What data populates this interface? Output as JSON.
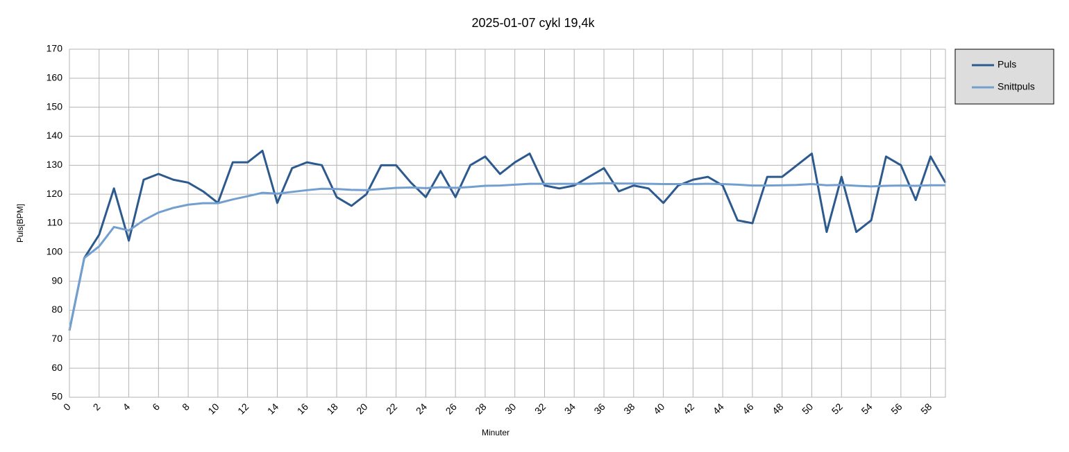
{
  "chart_data": {
    "type": "line",
    "title": "2025-01-07 cykl 19,4k",
    "x_label": "Minuter",
    "y_label": "Puls[BPM]",
    "x": [
      0,
      1,
      2,
      3,
      4,
      5,
      6,
      7,
      8,
      9,
      10,
      11,
      12,
      13,
      14,
      15,
      16,
      17,
      18,
      19,
      20,
      21,
      22,
      23,
      24,
      25,
      26,
      27,
      28,
      29,
      30,
      31,
      32,
      33,
      34,
      35,
      36,
      37,
      38,
      39,
      40,
      41,
      42,
      43,
      44,
      45,
      46,
      47,
      48,
      49,
      50,
      51,
      52,
      53,
      54,
      55,
      56,
      57,
      58,
      59
    ],
    "series": [
      {
        "name": "Puls",
        "color": "#2c5a8e",
        "values": [
          73,
          98,
          106,
          122,
          104,
          125,
          127,
          125,
          124,
          121,
          117,
          131,
          131,
          135,
          117,
          129,
          131,
          130,
          119,
          116,
          120,
          130,
          130,
          124,
          119,
          128,
          119,
          130,
          133,
          127,
          131,
          134,
          123,
          122,
          123,
          126,
          129,
          121,
          123,
          122,
          117,
          123,
          125,
          126,
          123,
          111,
          110,
          126,
          126,
          130,
          134,
          107,
          126,
          107,
          111,
          133,
          130,
          118,
          133,
          124
        ]
      },
      {
        "name": "Snittpuls",
        "color": "#729fcf",
        "values": [
          73,
          98,
          102,
          108.7,
          107.5,
          111,
          113.7,
          115.3,
          116.4,
          116.9,
          116.9,
          118.2,
          119.3,
          120.5,
          120.2,
          120.8,
          121.4,
          121.9,
          121.8,
          121.5,
          121.4,
          121.8,
          122.2,
          122.3,
          122.1,
          122.4,
          122.2,
          122.5,
          122.9,
          123,
          123.3,
          123.6,
          123.6,
          123.6,
          123.6,
          123.6,
          123.8,
          123.7,
          123.7,
          123.6,
          123.5,
          123.5,
          123.5,
          123.6,
          123.5,
          123.3,
          123,
          123,
          123.1,
          123.2,
          123.5,
          123.1,
          123.2,
          122.9,
          122.7,
          122.9,
          123,
          122.9,
          123.1,
          123.1
        ]
      }
    ],
    "xlim": [
      0,
      59
    ],
    "xticks": [
      0,
      2,
      4,
      6,
      8,
      10,
      12,
      14,
      16,
      18,
      20,
      22,
      24,
      26,
      28,
      30,
      32,
      34,
      36,
      38,
      40,
      42,
      44,
      46,
      48,
      50,
      52,
      54,
      56,
      58
    ],
    "ylim": [
      50,
      170
    ],
    "yticks": [
      50,
      60,
      70,
      80,
      90,
      100,
      110,
      120,
      130,
      140,
      150,
      160,
      170
    ],
    "grid": true,
    "legend": "right"
  }
}
